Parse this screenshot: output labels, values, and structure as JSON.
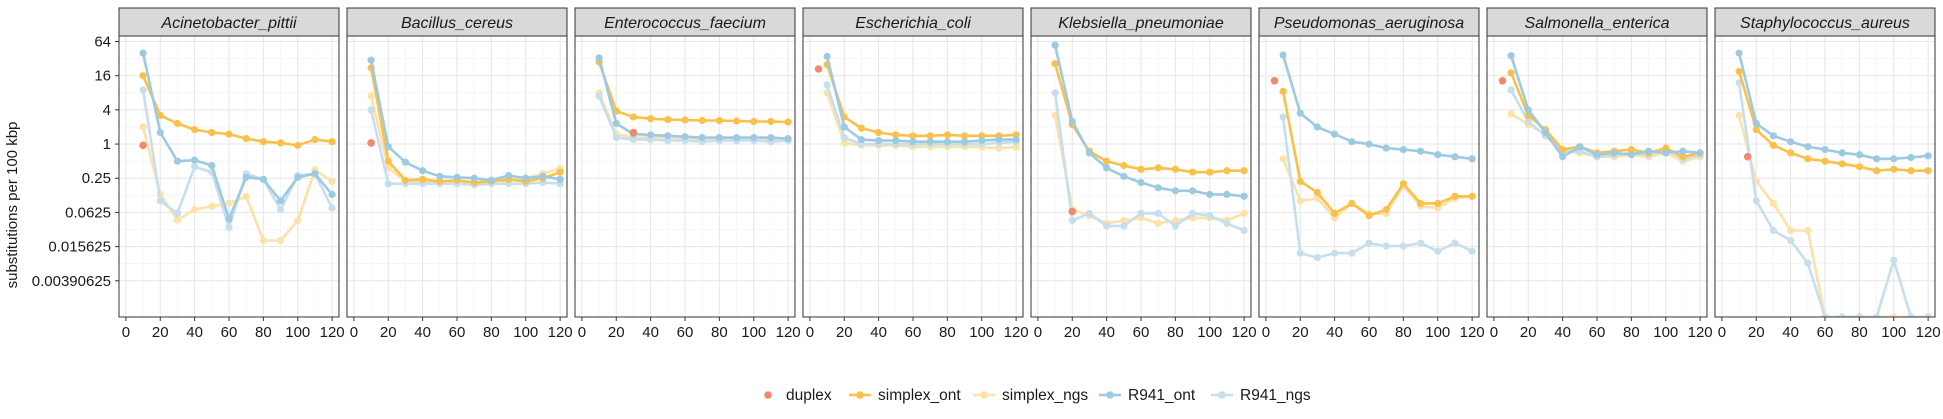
{
  "chart_data": {
    "type": "line",
    "layout": "faceted",
    "ylabel": "substitutions per 100 kbp",
    "xlabel": "",
    "y_scale": "log2",
    "ylim": [
      0.0009,
      80
    ],
    "xlim": [
      -4,
      124
    ],
    "x_ticks": [
      0,
      20,
      40,
      60,
      80,
      100,
      120
    ],
    "x_tick_labels": [
      "0",
      "20",
      "40",
      "60",
      "80",
      "100",
      "120"
    ],
    "y_ticks": [
      64,
      16,
      4,
      1,
      0.25,
      0.0625,
      0.015625,
      0.00390625
    ],
    "y_tick_labels": [
      "64",
      "16",
      "4",
      "1",
      "0.25",
      "0.0625",
      "0.015625",
      "0.00390625"
    ],
    "grid": true,
    "legend_position": "bottom",
    "legend": [
      {
        "key": "duplex",
        "label": "duplex",
        "color": "#F08A6E"
      },
      {
        "key": "simplex_ont",
        "label": "simplex_ont",
        "color": "#F9C14A"
      },
      {
        "key": "simplex_ngs",
        "label": "simplex_ngs",
        "color": "#FDE1A8"
      },
      {
        "key": "R941_ont",
        "label": "R941_ont",
        "color": "#9ECAE1"
      },
      {
        "key": "R941_ngs",
        "label": "R941_ngs",
        "color": "#C6DFEE"
      }
    ],
    "x": [
      10,
      20,
      30,
      40,
      50,
      60,
      70,
      80,
      90,
      100,
      110,
      120
    ],
    "facets": [
      {
        "title": "Acinetobacter_pittii",
        "duplex": [
          [
            10,
            0.95
          ]
        ],
        "simplex_ont": [
          16,
          3.2,
          2.3,
          1.8,
          1.6,
          1.5,
          1.25,
          1.1,
          1.05,
          0.95,
          1.2,
          1.1
        ],
        "simplex_ngs": [
          2.0,
          0.13,
          0.046,
          0.07,
          0.08,
          0.09,
          0.12,
          0.02,
          0.02,
          0.045,
          0.35,
          0.22
        ],
        "R941_ont": [
          40,
          1.6,
          0.5,
          0.52,
          0.42,
          0.048,
          0.26,
          0.24,
          0.1,
          0.26,
          0.3,
          0.13
        ],
        "R941_ngs": [
          9,
          0.1,
          0.06,
          0.4,
          0.32,
          0.034,
          0.3,
          0.24,
          0.07,
          0.28,
          0.3,
          0.075
        ]
      },
      {
        "title": "Bacillus_cereus",
        "duplex": [
          [
            10,
            1.05
          ]
        ],
        "simplex_ont": [
          22,
          0.5,
          0.23,
          0.24,
          0.22,
          0.23,
          0.21,
          0.22,
          0.24,
          0.22,
          0.25,
          0.32
        ],
        "simplex_ngs": [
          7,
          0.38,
          0.22,
          0.22,
          0.22,
          0.2,
          0.21,
          0.23,
          0.22,
          0.25,
          0.3,
          0.37
        ],
        "R941_ont": [
          30,
          0.9,
          0.48,
          0.34,
          0.27,
          0.26,
          0.25,
          0.23,
          0.28,
          0.25,
          0.27,
          0.24
        ],
        "R941_ngs": [
          4,
          0.2,
          0.2,
          0.2,
          0.2,
          0.2,
          0.19,
          0.2,
          0.2,
          0.2,
          0.21,
          0.2
        ]
      },
      {
        "title": "Enterococcus_faecium",
        "duplex": [
          [
            30,
            1.6
          ]
        ],
        "simplex_ont": [
          28,
          3.8,
          3.0,
          2.8,
          2.7,
          2.65,
          2.6,
          2.6,
          2.55,
          2.5,
          2.5,
          2.45
        ],
        "simplex_ngs": [
          8,
          1.5,
          1.3,
          1.3,
          1.3,
          1.25,
          1.2,
          1.2,
          1.25,
          1.25,
          1.2,
          1.2
        ],
        "R941_ont": [
          33,
          2.3,
          1.5,
          1.45,
          1.4,
          1.35,
          1.3,
          1.3,
          1.3,
          1.3,
          1.3,
          1.25
        ],
        "R941_ngs": [
          7,
          1.3,
          1.2,
          1.2,
          1.15,
          1.15,
          1.1,
          1.15,
          1.15,
          1.15,
          1.1,
          1.15
        ]
      },
      {
        "title": "Escherichia_coli",
        "duplex": [
          [
            5,
            21
          ]
        ],
        "simplex_ont": [
          25,
          3.0,
          1.9,
          1.6,
          1.45,
          1.4,
          1.4,
          1.45,
          1.4,
          1.4,
          1.4,
          1.45
        ],
        "simplex_ngs": [
          8,
          1.05,
          0.95,
          0.95,
          0.95,
          0.9,
          0.9,
          0.9,
          0.9,
          0.88,
          0.85,
          0.88
        ],
        "R941_ont": [
          35,
          2.0,
          1.2,
          1.15,
          1.15,
          1.1,
          1.1,
          1.1,
          1.1,
          1.15,
          1.2,
          1.2
        ],
        "R941_ngs": [
          11,
          1.3,
          1.0,
          1.0,
          1.0,
          1.0,
          1.0,
          1.0,
          1.0,
          1.0,
          1.05,
          1.1
        ]
      },
      {
        "title": "Klebsiella_pneumoniae",
        "duplex": [
          [
            20,
            0.065
          ]
        ],
        "simplex_ont": [
          26,
          2.2,
          0.75,
          0.5,
          0.42,
          0.36,
          0.38,
          0.36,
          0.32,
          0.32,
          0.34,
          0.34
        ],
        "simplex_ngs": [
          3.2,
          0.07,
          0.055,
          0.04,
          0.045,
          0.05,
          0.04,
          0.045,
          0.05,
          0.05,
          0.045,
          0.06
        ],
        "R941_ont": [
          55,
          2.5,
          0.7,
          0.38,
          0.27,
          0.21,
          0.17,
          0.15,
          0.15,
          0.13,
          0.13,
          0.12
        ],
        "R941_ngs": [
          8,
          0.045,
          0.06,
          0.036,
          0.036,
          0.06,
          0.06,
          0.036,
          0.06,
          0.055,
          0.04,
          0.03
        ]
      },
      {
        "title": "Pseudomonas_aeruginosa",
        "duplex": [
          [
            5,
            13
          ]
        ],
        "simplex_ont": [
          8.5,
          0.22,
          0.14,
          0.06,
          0.09,
          0.055,
          0.07,
          0.2,
          0.09,
          0.09,
          0.12,
          0.12
        ],
        "simplex_ngs": [
          0.55,
          0.1,
          0.11,
          0.05,
          0.09,
          0.06,
          0.06,
          0.18,
          0.08,
          0.075,
          0.11,
          0.12
        ],
        "R941_ont": [
          37,
          3.5,
          2.0,
          1.5,
          1.1,
          1.0,
          0.85,
          0.8,
          0.75,
          0.65,
          0.6,
          0.55
        ],
        "R941_ngs": [
          3,
          0.012,
          0.01,
          0.012,
          0.012,
          0.018,
          0.016,
          0.016,
          0.018,
          0.013,
          0.018,
          0.013
        ]
      },
      {
        "title": "Salmonella_enterica",
        "duplex": [
          [
            5,
            13
          ]
        ],
        "simplex_ont": [
          18,
          3.2,
          1.8,
          0.8,
          0.9,
          0.7,
          0.75,
          0.8,
          0.7,
          0.85,
          0.6,
          0.7
        ],
        "simplex_ngs": [
          3.4,
          2.2,
          1.5,
          0.75,
          0.7,
          0.6,
          0.6,
          0.65,
          0.6,
          0.7,
          0.5,
          0.6
        ],
        "R941_ont": [
          36,
          4.0,
          1.6,
          0.6,
          0.9,
          0.65,
          0.7,
          0.65,
          0.75,
          0.7,
          0.75,
          0.7
        ],
        "R941_ngs": [
          9,
          2.5,
          1.4,
          0.75,
          0.75,
          0.6,
          0.65,
          0.7,
          0.65,
          0.8,
          0.55,
          0.65
        ]
      },
      {
        "title": "Staphylococcus_aureus",
        "duplex": [
          [
            15,
            0.6
          ]
        ],
        "simplex_ont": [
          19,
          1.8,
          0.95,
          0.7,
          0.55,
          0.5,
          0.45,
          0.4,
          0.34,
          0.36,
          0.34,
          0.34
        ],
        "simplex_ngs": [
          3.2,
          0.22,
          0.09,
          0.03,
          0.03,
          0.0009,
          0.0009,
          0.0009,
          0.0009,
          0.0009,
          0.0009,
          0.0009
        ],
        "R941_ont": [
          40,
          2.3,
          1.4,
          1.1,
          0.9,
          0.8,
          0.7,
          0.65,
          0.55,
          0.55,
          0.58,
          0.62
        ],
        "R941_ngs": [
          12,
          0.1,
          0.03,
          0.02,
          0.008,
          0.0009,
          0.0009,
          0.0009,
          0.0009,
          0.009,
          0.0009,
          0.0009
        ]
      }
    ]
  }
}
